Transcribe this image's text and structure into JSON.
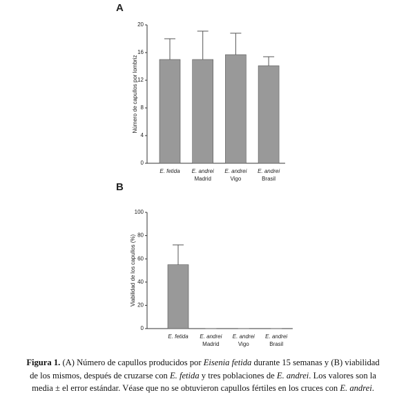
{
  "chart_data": [
    {
      "type": "bar",
      "title": "A",
      "ylabel": "Número de capullos por lombriz",
      "categories": [
        [
          "E. fetida"
        ],
        [
          "E. andrei",
          "Madrid"
        ],
        [
          "E. andrei",
          "Vigo"
        ],
        [
          "E. andrei",
          "Brasil"
        ]
      ],
      "values": [
        15,
        15,
        15.7,
        14.1
      ],
      "errors": [
        3,
        4.1,
        3.1,
        1.3
      ],
      "color": "#999999",
      "ylim": [
        0,
        20
      ],
      "yticks": [
        0,
        4,
        8,
        12,
        16,
        20
      ]
    },
    {
      "type": "bar",
      "title": "B",
      "ylabel": "Viabilidad de los capullos (%)",
      "categories": [
        [
          "E. fetida"
        ],
        [
          "E. andrei",
          "Madrid"
        ],
        [
          "E. andrei",
          "Vigo"
        ],
        [
          "E. andrei",
          "Brasil"
        ]
      ],
      "values": [
        55,
        0,
        0,
        0
      ],
      "errors": [
        17,
        0,
        0,
        0
      ],
      "color": "#999999",
      "ylim": [
        0,
        100
      ],
      "yticks": [
        0,
        20,
        40,
        60,
        80,
        100
      ]
    }
  ],
  "caption": [
    [
      {
        "text": "Figura 1.",
        "style": "bold"
      },
      {
        "text": " (A) Número de capullos producidos por ",
        "style": "normal"
      },
      {
        "text": "Eisenia fetida",
        "style": "italic"
      },
      {
        "text": " durante 15 semanas y (B) viabilidad",
        "style": "normal"
      }
    ],
    [
      {
        "text": "de los mismos, después de cruzarse con ",
        "style": "normal"
      },
      {
        "text": "E. fetida",
        "style": "italic"
      },
      {
        "text": " y tres poblaciones de ",
        "style": "normal"
      },
      {
        "text": "E. andrei",
        "style": "italic"
      },
      {
        "text": ". Los valores son la",
        "style": "normal"
      }
    ],
    [
      {
        "text": "media ± el error estándar. Véase que no se obtuvieron capullos fértiles en los cruces con ",
        "style": "normal"
      },
      {
        "text": "E. andrei",
        "style": "italic"
      },
      {
        "text": ".",
        "style": "normal"
      }
    ]
  ]
}
